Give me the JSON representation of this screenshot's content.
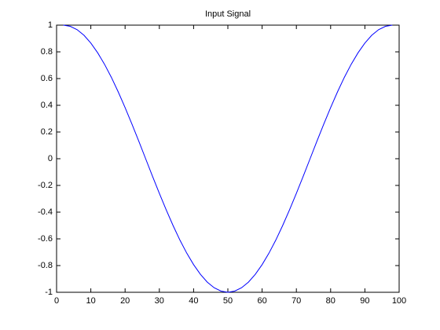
{
  "chart_data": {
    "type": "line",
    "title": "Input Signal",
    "x": [
      2,
      4,
      6,
      8,
      10,
      12,
      14,
      16,
      18,
      20,
      22,
      24,
      26,
      28,
      30,
      32,
      34,
      36,
      38,
      40,
      42,
      44,
      46,
      48,
      50,
      52,
      54,
      56,
      58,
      60,
      62,
      64,
      66,
      68,
      70,
      72,
      74,
      76,
      78,
      80,
      82,
      84,
      86,
      88,
      90,
      92,
      94,
      96,
      98
    ],
    "values": [
      1,
      0.991,
      0.966,
      0.924,
      0.866,
      0.793,
      0.707,
      0.609,
      0.5,
      0.383,
      0.259,
      0.131,
      0,
      -0.131,
      -0.259,
      -0.383,
      -0.5,
      -0.609,
      -0.707,
      -0.793,
      -0.866,
      -0.924,
      -0.966,
      -0.991,
      -1,
      -0.991,
      -0.966,
      -0.924,
      -0.866,
      -0.793,
      -0.707,
      -0.609,
      -0.5,
      -0.383,
      -0.259,
      -0.131,
      0,
      0.131,
      0.259,
      0.383,
      0.5,
      0.609,
      0.707,
      0.793,
      0.866,
      0.924,
      0.966,
      0.991,
      1
    ],
    "color": "#0000ff",
    "xlim": [
      0,
      100
    ],
    "xticks": [
      0,
      10,
      20,
      30,
      40,
      50,
      60,
      70,
      80,
      90,
      100
    ],
    "ylim": [
      -1,
      1
    ],
    "yticks": [
      -1,
      -0.8,
      -0.6,
      -0.4,
      -0.2,
      0,
      0.2,
      0.4,
      0.6,
      0.8,
      1
    ],
    "grid": false
  }
}
